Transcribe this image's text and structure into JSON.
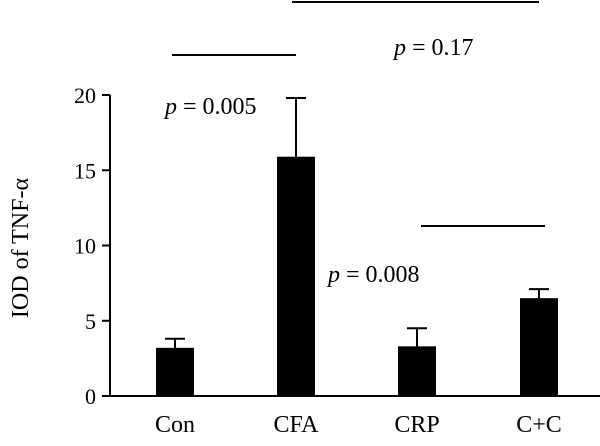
{
  "chart_data": {
    "type": "bar",
    "categories": [
      "Con",
      "CFA",
      "CRP",
      "C+C"
    ],
    "values": [
      3.2,
      15.9,
      3.3,
      6.5
    ],
    "errors": [
      0.6,
      3.9,
      1.2,
      0.6
    ],
    "ylabel": "IOD of TNF-α",
    "ylim": [
      0,
      20
    ],
    "yticks": [
      "0",
      "5",
      "10",
      "15",
      "20"
    ],
    "bar_color": "#000000",
    "grid": false,
    "annotations": [
      {
        "p_symbol": "p",
        "text": " = 0.005",
        "between": [
          "Con",
          "CFA"
        ]
      },
      {
        "p_symbol": "p",
        "text": " = 0.17",
        "between": [
          "CFA",
          "C+C"
        ]
      },
      {
        "p_symbol": "p",
        "text": " = 0.008",
        "between": [
          "CRP",
          "C+C"
        ]
      }
    ]
  }
}
